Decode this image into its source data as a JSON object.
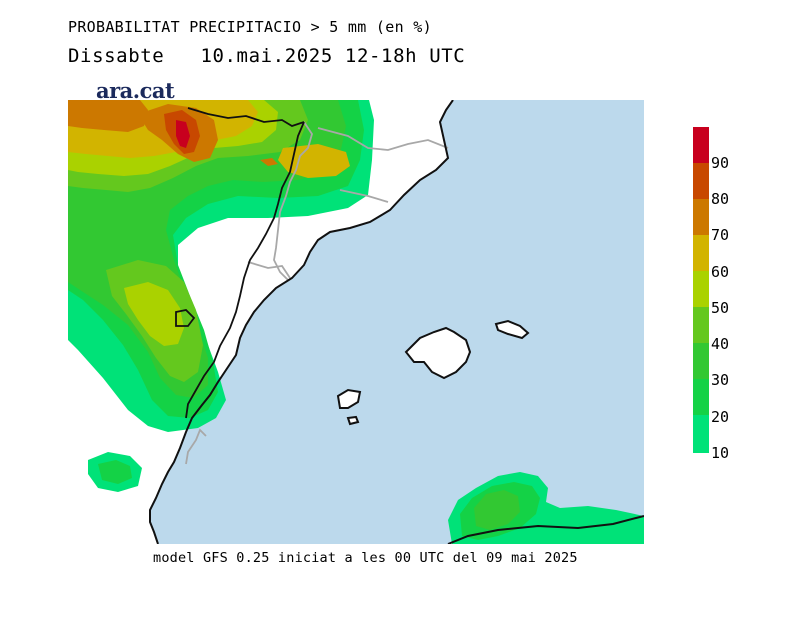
{
  "header": {
    "title": "PROBABILITAT PRECIPITACIO > 5 mm (en %)",
    "day": "Dissabte",
    "date": "10.mai.2025",
    "period": "12-18h",
    "tz": "UTC"
  },
  "logo": "ara.cat",
  "footer": "model GFS 0.25 iniciat a les 00 UTC del 09 mai 2025",
  "legend": {
    "labels": [
      "90",
      "80",
      "70",
      "60",
      "50",
      "40",
      "30",
      "20",
      "10"
    ],
    "colors": [
      "#c8001e",
      "#c84800",
      "#cc7800",
      "#d2b400",
      "#aad200",
      "#64c81e",
      "#32c832",
      "#14d246",
      "#00e278"
    ]
  },
  "map_colors": {
    "sea": "#bcd9ec",
    "land": "#ffffff",
    "coast": "#111111",
    "borders": "#a8a8a8"
  }
}
